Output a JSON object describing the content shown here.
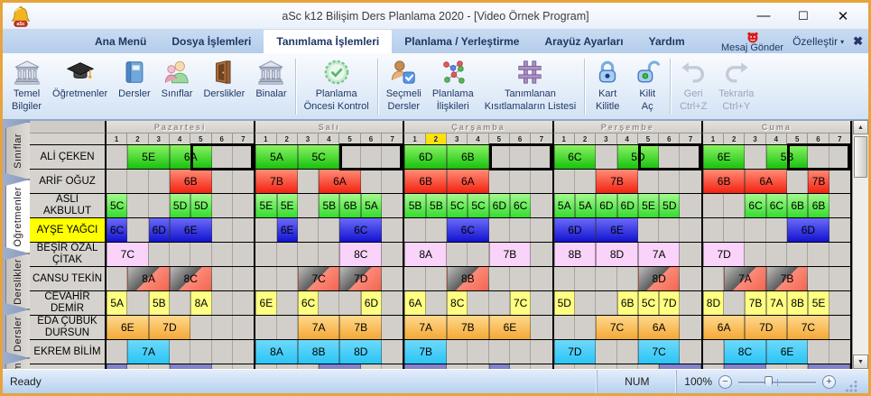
{
  "window": {
    "title": "aSc k12 Bilişim Ders Planlama 2020 - [Video Örnek Program]",
    "controls": {
      "minimize": "—",
      "maximize": "☐",
      "close": "✕"
    },
    "logo_icon": "asc-bell-logo"
  },
  "menu": {
    "items": [
      {
        "label": "Ana Menü",
        "bold": true
      },
      {
        "label": "Dosya İşlemleri"
      },
      {
        "label": "Tanımlama İşlemleri"
      },
      {
        "label": "Planlama / Yerleştirme"
      },
      {
        "label": "Arayüz Ayarları"
      },
      {
        "label": "Yardım"
      }
    ],
    "active_index": 2,
    "message_button": "Mesaj Gönder",
    "message_icon": "red-face-icon",
    "customize": "Özelleştir",
    "customize_arrow": "▾",
    "close_x": "✖"
  },
  "toolbar": {
    "groups": [
      [
        {
          "label": "Temel\nBilgiler",
          "icon": "bank-icon"
        },
        {
          "label": "Öğretmenler",
          "icon": "graduation-cap-icon"
        },
        {
          "label": "Dersler",
          "icon": "book-icon"
        },
        {
          "label": "Sınıflar",
          "icon": "people-icon"
        },
        {
          "label": "Derslikler",
          "icon": "door-icon"
        },
        {
          "label": "Binalar",
          "icon": "building-icon"
        }
      ],
      [
        {
          "label": "Planlama\nÖncesi Kontrol",
          "icon": "check-badge-icon"
        }
      ],
      [
        {
          "label": "Seçmeli\nDersler",
          "icon": "person-check-icon"
        },
        {
          "label": "Planlama\nİlişkileri",
          "icon": "network-icon"
        },
        {
          "label": "Tanımlanan\nKısıtlamaların Listesi",
          "icon": "constraint-grid-icon"
        }
      ],
      [
        {
          "label": "Kart\nKilitle",
          "icon": "lock-closed-icon"
        },
        {
          "label": "Kilit\nAç",
          "icon": "lock-open-icon"
        }
      ],
      [
        {
          "label": "Geri\nCtrl+Z",
          "icon": "undo-icon",
          "disabled": true
        },
        {
          "label": "Tekrarla\nCtrl+Y",
          "icon": "redo-icon",
          "disabled": true
        }
      ]
    ]
  },
  "sidebar": {
    "tabs": [
      {
        "label": "Sınıflar"
      },
      {
        "label": "Öğretmenler",
        "active": true
      },
      {
        "label": "Derslikler"
      },
      {
        "label": "Dersler"
      },
      {
        "label": "etim",
        "cut": true
      }
    ]
  },
  "timetable": {
    "days": [
      "Pazartesi",
      "Salı",
      "Çarşamba",
      "Perşembe",
      "Cuma"
    ],
    "periods": [
      "1",
      "2",
      "3",
      "4",
      "5",
      "6",
      "7"
    ],
    "highlight": {
      "day": 2,
      "period": 2
    },
    "colors": {
      "green": "#17c20e",
      "green2": "#35dc2e",
      "red": "#f32111",
      "blue": "#1212d0",
      "pink": "#f9d3f9",
      "yellow": "#ffff82",
      "orange": "#f4a837",
      "cyan": "#29c5f6",
      "purple": "#8383cd",
      "highlight_yellow": "#ffe10a",
      "name_yellow": "#ffff00"
    },
    "rows": [
      {
        "teacher": "ALİ ÇEKEN",
        "style": "green",
        "cells": [
          [
            0,
            2,
            2,
            "5E"
          ],
          [
            0,
            4,
            2,
            "6A"
          ],
          [
            1,
            1,
            2,
            "5A"
          ],
          [
            1,
            3,
            2,
            "5C"
          ],
          [
            2,
            1,
            2,
            "6D"
          ],
          [
            2,
            3,
            2,
            "6B"
          ],
          [
            3,
            1,
            2,
            "6C"
          ],
          [
            3,
            4,
            2,
            "5D"
          ],
          [
            4,
            1,
            2,
            "6E"
          ],
          [
            4,
            4,
            2,
            "5B"
          ]
        ],
        "boxes": [
          [
            0,
            5,
            3
          ],
          [
            1,
            5,
            3
          ],
          [
            2,
            5,
            3
          ],
          [
            3,
            5,
            3
          ],
          [
            4,
            5,
            3
          ]
        ]
      },
      {
        "teacher": "ARİF OĞUZ",
        "style": "red",
        "cells": [
          [
            0,
            4,
            2,
            "6B"
          ],
          [
            1,
            1,
            2,
            "7B"
          ],
          [
            1,
            4,
            2,
            "6A"
          ],
          [
            2,
            1,
            2,
            "6B"
          ],
          [
            2,
            3,
            2,
            "6A"
          ],
          [
            3,
            3,
            2,
            "7B"
          ],
          [
            4,
            1,
            2,
            "6B"
          ],
          [
            4,
            3,
            2,
            "6A"
          ],
          [
            4,
            6,
            1,
            "7B"
          ]
        ]
      },
      {
        "teacher": "ASLI AKBULUT",
        "style": "green2",
        "cells": [
          [
            0,
            1,
            1,
            "5C"
          ],
          [
            0,
            4,
            1,
            "5D"
          ],
          [
            0,
            5,
            1,
            "5D"
          ],
          [
            1,
            1,
            1,
            "5E"
          ],
          [
            1,
            2,
            1,
            "5E"
          ],
          [
            1,
            4,
            1,
            "5B"
          ],
          [
            1,
            5,
            1,
            "6B"
          ],
          [
            1,
            6,
            1,
            "5A"
          ],
          [
            2,
            1,
            1,
            "5B"
          ],
          [
            2,
            2,
            1,
            "5B"
          ],
          [
            2,
            3,
            1,
            "5C"
          ],
          [
            2,
            4,
            1,
            "5C"
          ],
          [
            2,
            5,
            1,
            "6D"
          ],
          [
            2,
            6,
            1,
            "6C"
          ],
          [
            3,
            1,
            1,
            "5A"
          ],
          [
            3,
            2,
            1,
            "5A"
          ],
          [
            3,
            3,
            1,
            "6D"
          ],
          [
            3,
            4,
            1,
            "6D"
          ],
          [
            3,
            5,
            1,
            "5E"
          ],
          [
            3,
            6,
            1,
            "5D"
          ],
          [
            4,
            3,
            1,
            "6C"
          ],
          [
            4,
            4,
            1,
            "6C"
          ],
          [
            4,
            5,
            1,
            "6B"
          ],
          [
            4,
            6,
            1,
            "6B"
          ]
        ]
      },
      {
        "teacher": "AYŞE YAĞCI",
        "style": "blue",
        "name_bg": "yellow",
        "cells": [
          [
            0,
            1,
            1,
            "6C"
          ],
          [
            0,
            3,
            1,
            "6D"
          ],
          [
            0,
            4,
            2,
            "6E"
          ],
          [
            1,
            2,
            1,
            "6E"
          ],
          [
            1,
            5,
            2,
            "6C"
          ],
          [
            2,
            3,
            2,
            "6C"
          ],
          [
            3,
            1,
            2,
            "6D"
          ],
          [
            3,
            3,
            2,
            "6E"
          ],
          [
            4,
            5,
            2,
            "6D"
          ]
        ]
      },
      {
        "teacher": "BEŞİR ÖZAL ÇİTAK",
        "style": "pink",
        "cells": [
          [
            0,
            1,
            2,
            "7C"
          ],
          [
            1,
            5,
            2,
            "8C"
          ],
          [
            2,
            1,
            2,
            "8A"
          ],
          [
            2,
            5,
            2,
            "7B"
          ],
          [
            3,
            1,
            2,
            "8B"
          ],
          [
            3,
            3,
            2,
            "8D"
          ],
          [
            3,
            5,
            2,
            "7A"
          ],
          [
            4,
            1,
            2,
            "7D"
          ]
        ]
      },
      {
        "teacher": "CANSU TEKİN",
        "style": "diag",
        "cells": [
          [
            0,
            2,
            2,
            "8A"
          ],
          [
            0,
            4,
            2,
            "8C"
          ],
          [
            1,
            3,
            2,
            "7C"
          ],
          [
            1,
            5,
            2,
            "7D"
          ],
          [
            2,
            3,
            2,
            "8B"
          ],
          [
            3,
            5,
            2,
            "8D"
          ],
          [
            4,
            2,
            2,
            "7A"
          ],
          [
            4,
            4,
            2,
            "7B"
          ]
        ]
      },
      {
        "teacher": "CEVAHİR DEMİR",
        "style": "yellow",
        "cells": [
          [
            0,
            1,
            1,
            "5A"
          ],
          [
            0,
            3,
            1,
            "5B"
          ],
          [
            0,
            5,
            1,
            "8A"
          ],
          [
            1,
            1,
            1,
            "6E"
          ],
          [
            1,
            3,
            1,
            "6C"
          ],
          [
            1,
            6,
            1,
            "6D"
          ],
          [
            2,
            1,
            1,
            "6A"
          ],
          [
            2,
            3,
            1,
            "8C"
          ],
          [
            2,
            6,
            1,
            "7C"
          ],
          [
            3,
            1,
            1,
            "5D"
          ],
          [
            3,
            4,
            1,
            "6B"
          ],
          [
            3,
            5,
            1,
            "5C"
          ],
          [
            3,
            6,
            1,
            "7D"
          ],
          [
            4,
            1,
            1,
            "8D"
          ],
          [
            4,
            3,
            1,
            "7B"
          ],
          [
            4,
            4,
            1,
            "7A"
          ],
          [
            4,
            5,
            1,
            "8B"
          ],
          [
            4,
            6,
            1,
            "5E"
          ]
        ]
      },
      {
        "teacher": "EDA ÇUBUK DURSUN",
        "style": "orange",
        "cells": [
          [
            0,
            1,
            2,
            "6E"
          ],
          [
            0,
            3,
            2,
            "7D"
          ],
          [
            1,
            3,
            2,
            "7A"
          ],
          [
            1,
            5,
            2,
            "7B"
          ],
          [
            2,
            1,
            2,
            "7A"
          ],
          [
            2,
            3,
            2,
            "7B"
          ],
          [
            2,
            5,
            2,
            "6E"
          ],
          [
            3,
            3,
            2,
            "7C"
          ],
          [
            3,
            5,
            2,
            "6A"
          ],
          [
            4,
            1,
            2,
            "6A"
          ],
          [
            4,
            3,
            2,
            "7D"
          ],
          [
            4,
            5,
            2,
            "7C"
          ]
        ]
      },
      {
        "teacher": "EKREM BİLİM",
        "style": "cyan",
        "cells": [
          [
            0,
            2,
            2,
            "7A"
          ],
          [
            1,
            1,
            2,
            "8A"
          ],
          [
            1,
            3,
            2,
            "8B"
          ],
          [
            1,
            5,
            2,
            "8D"
          ],
          [
            2,
            1,
            2,
            "7B"
          ],
          [
            3,
            1,
            2,
            "7D"
          ],
          [
            3,
            5,
            2,
            "7C"
          ],
          [
            4,
            2,
            2,
            "8C"
          ],
          [
            4,
            4,
            2,
            "6E"
          ]
        ]
      }
    ],
    "next_row_partial": {
      "style": "purple",
      "cells": [
        [
          0,
          1,
          1,
          ""
        ],
        [
          0,
          4,
          2,
          ""
        ],
        [
          1,
          4,
          2,
          ""
        ],
        [
          2,
          1,
          2,
          ""
        ],
        [
          2,
          5,
          1,
          ""
        ],
        [
          3,
          6,
          2,
          ""
        ],
        [
          4,
          2,
          2,
          ""
        ],
        [
          4,
          6,
          2,
          ""
        ]
      ]
    }
  },
  "statusbar": {
    "left": "Ready",
    "num": "NUM",
    "zoom": "100%",
    "zoom_out": "−",
    "zoom_in": "+"
  }
}
